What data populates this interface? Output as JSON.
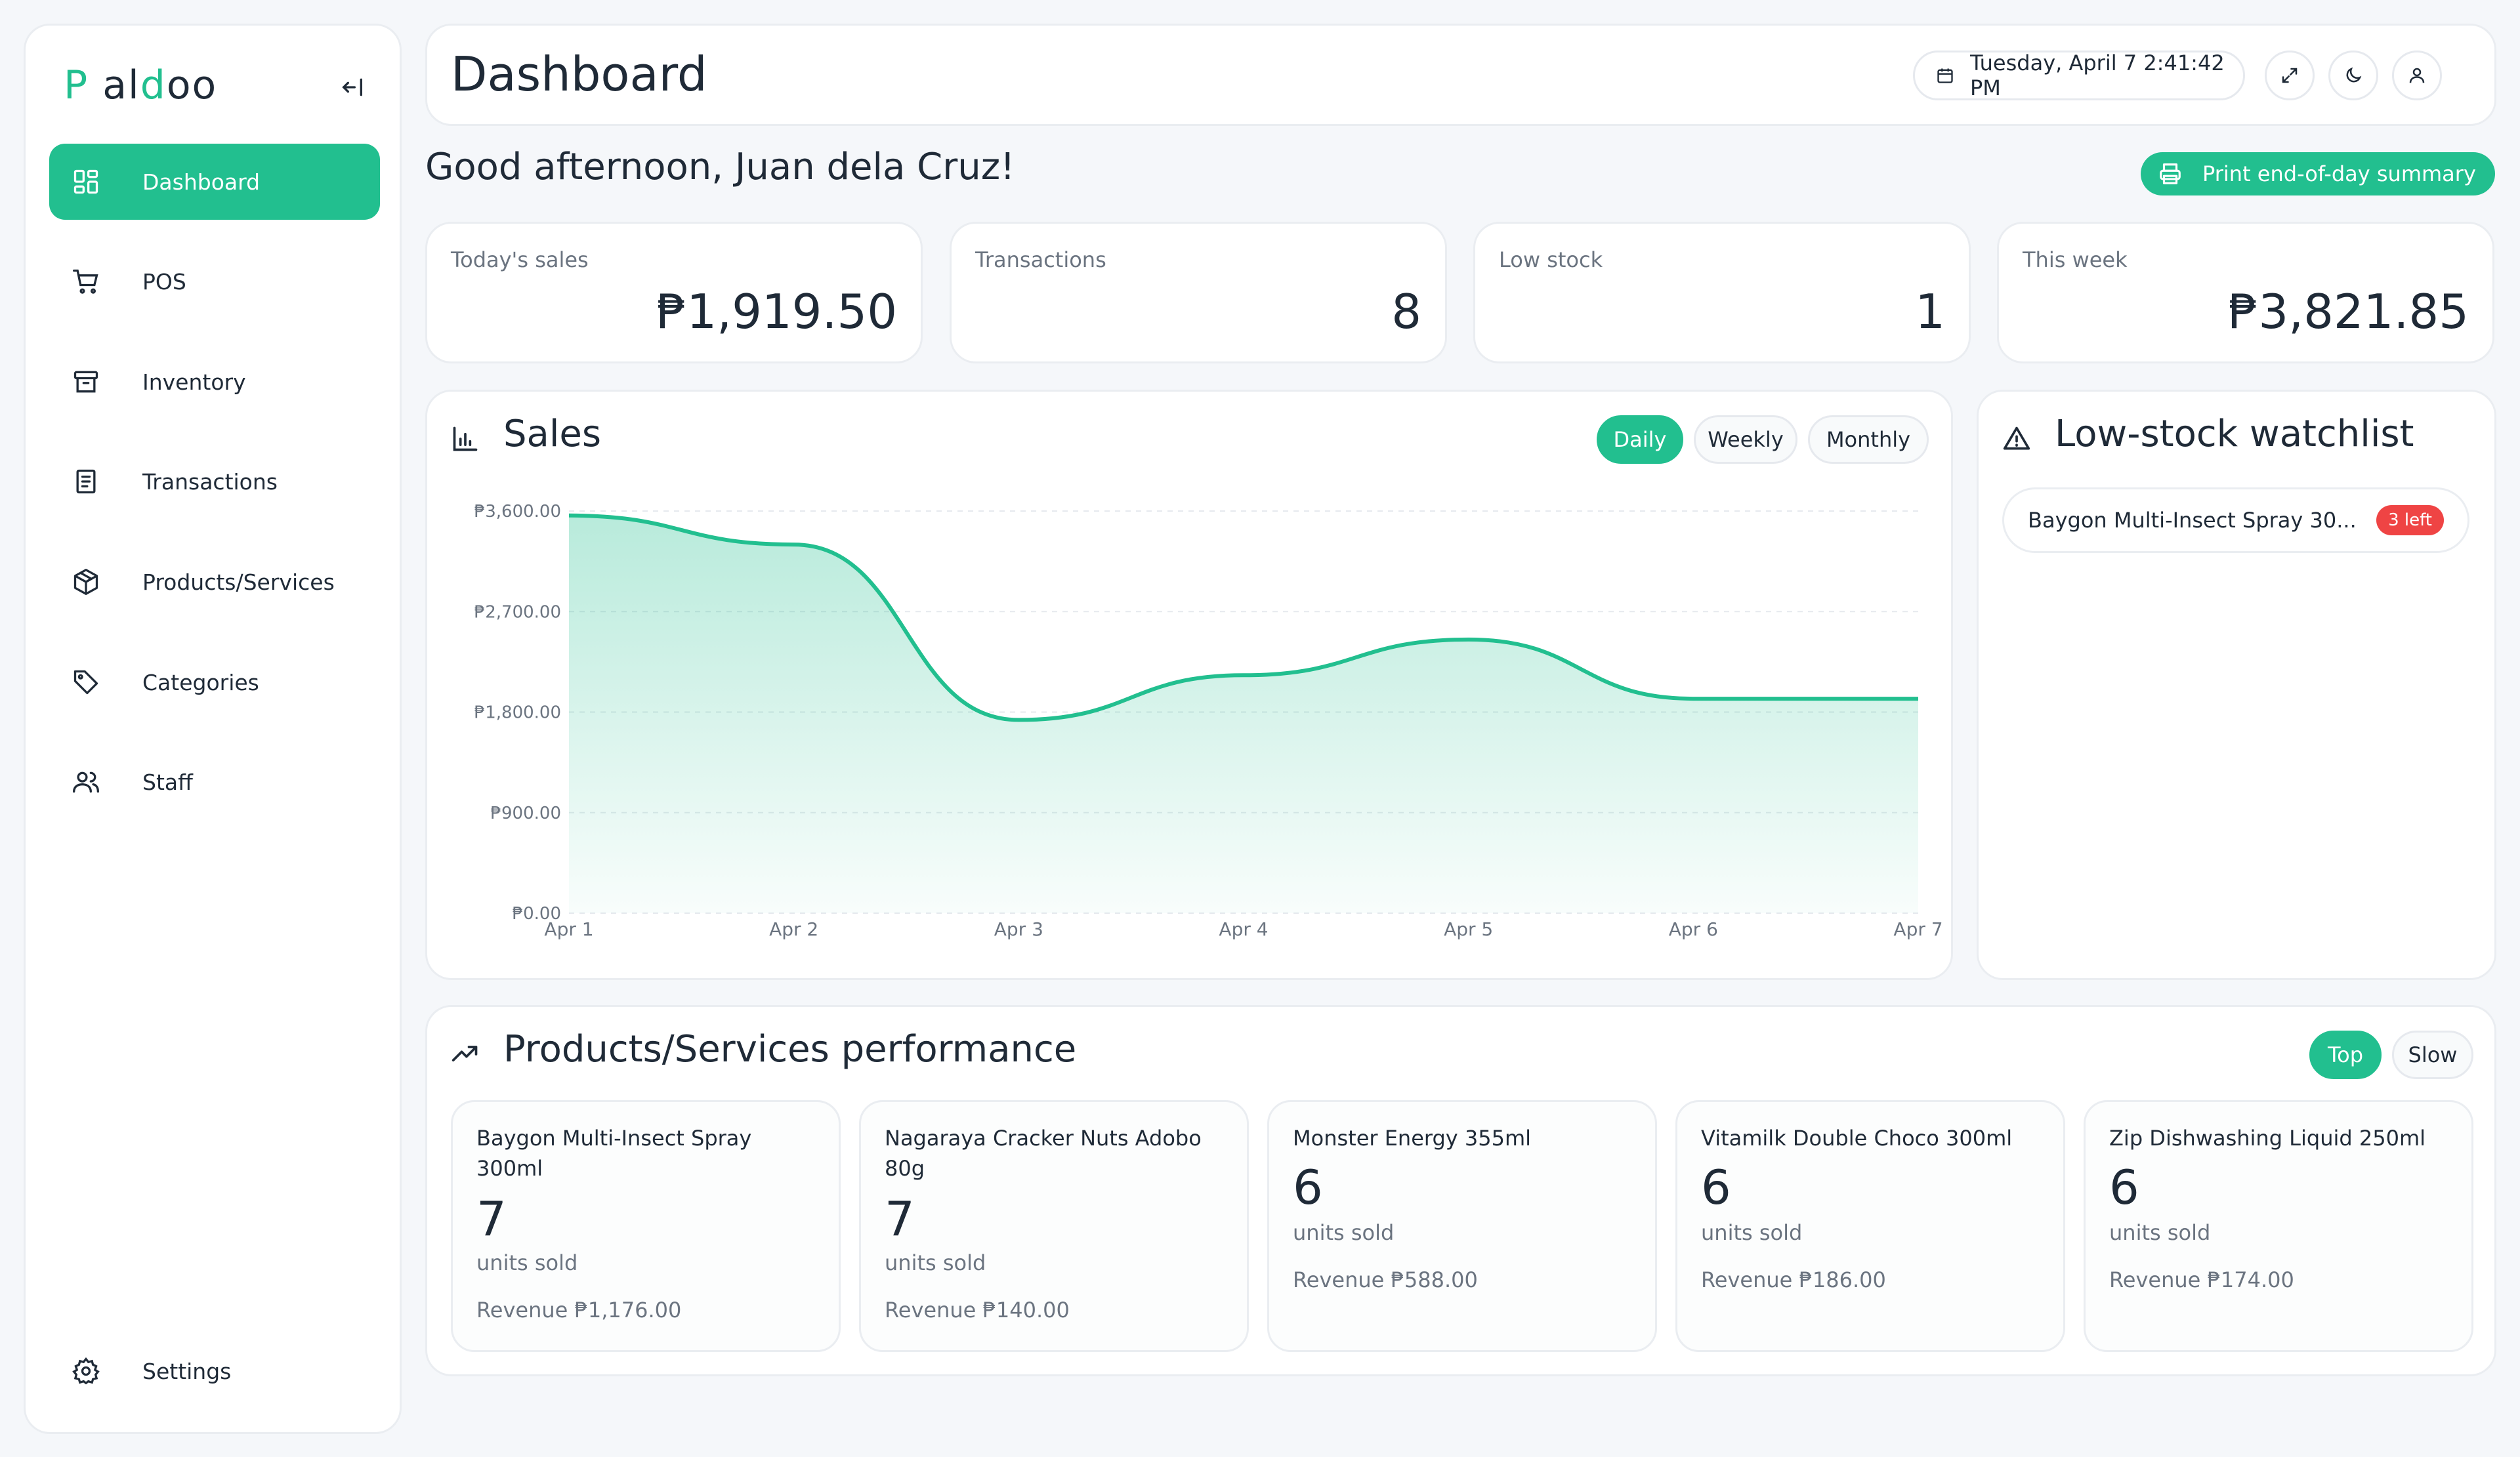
{
  "brand": {
    "logo_p": "P",
    "logo_a": "a",
    "logo_l": "l",
    "logo_d": "d",
    "logo_oo": "oo",
    "accent": "#22bf8f"
  },
  "sidebar": {
    "items": [
      {
        "label": "Dashboard",
        "icon": "grid-icon",
        "active": true
      },
      {
        "label": "POS",
        "icon": "cart-icon"
      },
      {
        "label": "Inventory",
        "icon": "archive-icon"
      },
      {
        "label": "Transactions",
        "icon": "receipt-icon"
      },
      {
        "label": "Products/Services",
        "icon": "package-icon"
      },
      {
        "label": "Categories",
        "icon": "tag-icon"
      },
      {
        "label": "Staff",
        "icon": "users-icon"
      }
    ],
    "settings": "Settings"
  },
  "header": {
    "title": "Dashboard",
    "datetime": "Tuesday, April 7 2:41:42 PM"
  },
  "greeting": "Good afternoon, Juan dela Cruz!",
  "print_button": "Print end-of-day summary",
  "stats": [
    {
      "label": "Today's sales",
      "value": "₱1,919.50"
    },
    {
      "label": "Transactions",
      "value": "8"
    },
    {
      "label": "Low stock",
      "value": "1"
    },
    {
      "label": "This week",
      "value": "₱3,821.85"
    }
  ],
  "sales": {
    "title": "Sales",
    "tabs": [
      "Daily",
      "Weekly",
      "Monthly"
    ],
    "active_tab": "Daily"
  },
  "chart_data": {
    "type": "area",
    "x": [
      "Apr 1",
      "Apr 2",
      "Apr 3",
      "Apr 4",
      "Apr 5",
      "Apr 6",
      "Apr 7"
    ],
    "y_ticks": [
      "₱0.00",
      "₱900.00",
      "₱1,800.00",
      "₱2,700.00",
      "₱3,600.00"
    ],
    "values": [
      3560,
      3300,
      1730,
      2130,
      2450,
      1920,
      1920
    ],
    "ylim": [
      0,
      3600
    ],
    "grid": true,
    "color": "#22bf8f"
  },
  "watchlist": {
    "title": "Low-stock watchlist",
    "items": [
      {
        "name": "Baygon Multi-Insect Spray 30...",
        "badge": "3 left"
      }
    ]
  },
  "performance": {
    "title": "Products/Services performance",
    "tabs": [
      "Top",
      "Slow"
    ],
    "active_tab": "Top",
    "units_label": "units sold",
    "items": [
      {
        "name": "Baygon Multi-Insect Spray 300ml",
        "units": "7",
        "revenue": "Revenue ₱1,176.00"
      },
      {
        "name": "Nagaraya Cracker Nuts Adobo 80g",
        "units": "7",
        "revenue": "Revenue ₱140.00"
      },
      {
        "name": "Monster Energy 355ml",
        "units": "6",
        "revenue": "Revenue ₱588.00"
      },
      {
        "name": "Vitamilk Double Choco 300ml",
        "units": "6",
        "revenue": "Revenue ₱186.00"
      },
      {
        "name": "Zip Dishwashing Liquid 250ml",
        "units": "6",
        "revenue": "Revenue ₱174.00"
      }
    ]
  }
}
